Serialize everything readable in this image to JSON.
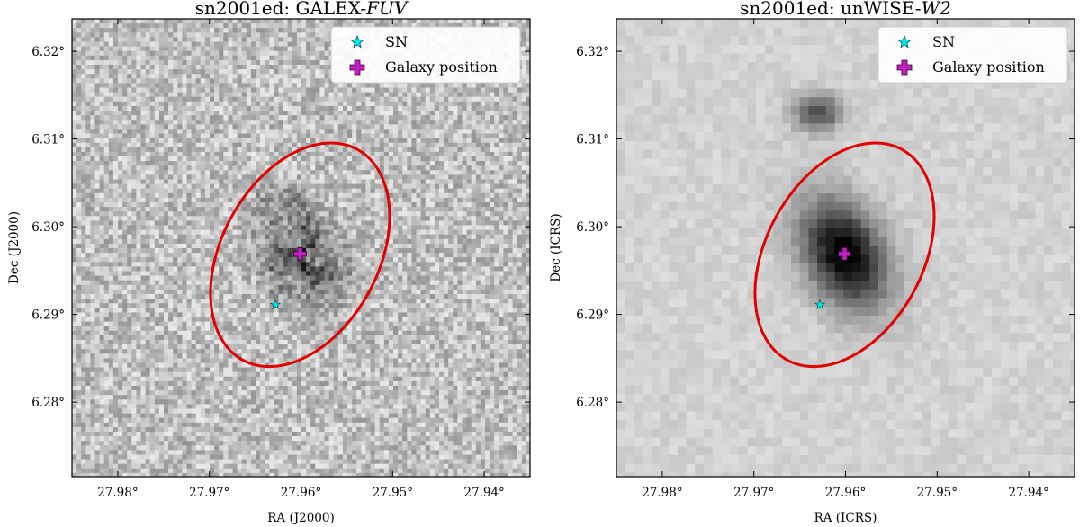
{
  "chart_data": [
    {
      "type": "image",
      "title_prefix": "sn2001ed: GALEX-",
      "title_band": "FUV",
      "xlabel": "RA (J2000)",
      "ylabel": "Dec (J2000)",
      "xlim": [
        27.985,
        27.935
      ],
      "ylim": [
        6.2715,
        6.3237
      ],
      "xticks": [
        27.98,
        27.97,
        27.96,
        27.95,
        27.94
      ],
      "xtick_labels": [
        "27.98°",
        "27.97°",
        "27.96°",
        "27.95°",
        "27.94°"
      ],
      "yticks": [
        6.28,
        6.29,
        6.3,
        6.31,
        6.32
      ],
      "ytick_labels": [
        "6.28°",
        "6.29°",
        "6.30°",
        "6.31°",
        "6.32°"
      ],
      "colormap": "gray_r",
      "legend_location": "upper right",
      "legend": [
        {
          "label": "SN",
          "marker": "star",
          "color": "#00e5e5"
        },
        {
          "label": "Galaxy position",
          "marker": "plus",
          "color": "#c020c0"
        }
      ],
      "sn_position": {
        "ra": 27.9628,
        "dec": 6.2911
      },
      "galaxy_position": {
        "ra": 27.9601,
        "dec": 6.2969
      },
      "aperture": {
        "type": "ellipse",
        "center_ra": 27.9601,
        "center_dec": 6.2968,
        "a_deg": 0.01309,
        "b_deg": 0.00856,
        "angle_deg": 61.5,
        "color": "#e00000"
      }
    },
    {
      "type": "image",
      "title_prefix": "sn2001ed: unWISE-",
      "title_band": "W2",
      "xlabel": "RA (ICRS)",
      "ylabel": "Dec (ICRS)",
      "xlim": [
        27.985,
        27.935
      ],
      "ylim": [
        6.2715,
        6.3237
      ],
      "xticks": [
        27.98,
        27.97,
        27.96,
        27.95,
        27.94
      ],
      "xtick_labels": [
        "27.98°",
        "27.97°",
        "27.96°",
        "27.95°",
        "27.94°"
      ],
      "yticks": [
        6.28,
        6.29,
        6.3,
        6.31,
        6.32
      ],
      "ytick_labels": [
        "6.28°",
        "6.29°",
        "6.30°",
        "6.31°",
        "6.32°"
      ],
      "colormap": "gray_r",
      "legend_location": "upper right",
      "legend": [
        {
          "label": "SN",
          "marker": "star",
          "color": "#00e5e5"
        },
        {
          "label": "Galaxy position",
          "marker": "plus",
          "color": "#c020c0"
        }
      ],
      "sn_position": {
        "ra": 27.9628,
        "dec": 6.2911
      },
      "galaxy_position": {
        "ra": 27.9601,
        "dec": 6.2969
      },
      "aperture": {
        "type": "ellipse",
        "center_ra": 27.9601,
        "center_dec": 6.2968,
        "a_deg": 0.01309,
        "b_deg": 0.00856,
        "angle_deg": 61.5,
        "color": "#e00000"
      }
    }
  ]
}
